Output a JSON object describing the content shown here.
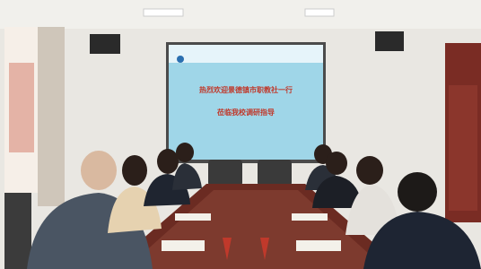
{
  "screen": {
    "line1": "热烈欢迎景德镇市职教社一行",
    "line2": "莅临我校调研指导"
  }
}
